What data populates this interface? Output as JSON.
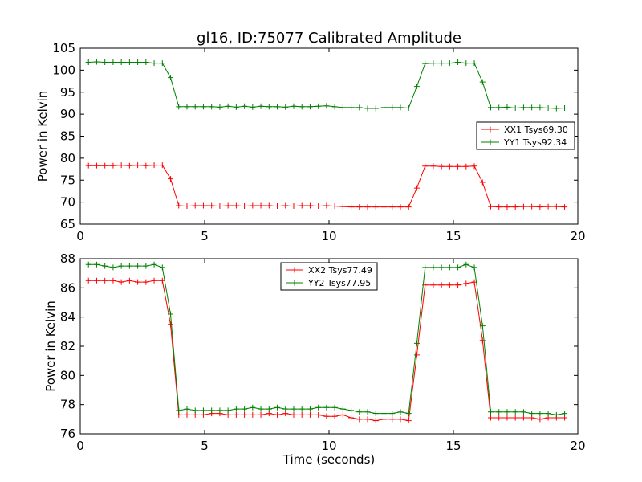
{
  "figure": {
    "title": "gl16, ID:75077 Calibrated Amplitude"
  },
  "chart_data": [
    {
      "type": "line",
      "xlabel": "",
      "ylabel": "Power in Kelvin",
      "xlim": [
        0,
        20
      ],
      "ylim": [
        65,
        105
      ],
      "xticks": [
        0,
        5,
        10,
        15,
        20
      ],
      "yticks": [
        65,
        70,
        75,
        80,
        85,
        90,
        95,
        100,
        105
      ],
      "grid": false,
      "legend_position": "center-right",
      "x": [
        0.33,
        0.66,
        0.99,
        1.32,
        1.65,
        1.98,
        2.31,
        2.64,
        2.97,
        3.3,
        3.63,
        3.96,
        4.29,
        4.62,
        4.95,
        5.28,
        5.61,
        5.94,
        6.27,
        6.6,
        6.93,
        7.26,
        7.59,
        7.92,
        8.25,
        8.58,
        8.91,
        9.24,
        9.57,
        9.9,
        10.23,
        10.56,
        10.89,
        11.22,
        11.55,
        11.88,
        12.21,
        12.54,
        12.87,
        13.2,
        13.53,
        13.86,
        14.19,
        14.52,
        14.85,
        15.18,
        15.51,
        15.84,
        16.17,
        16.5,
        16.83,
        17.16,
        17.49,
        17.82,
        18.15,
        18.48,
        18.81,
        19.14,
        19.47
      ],
      "series": [
        {
          "name": "XX1 Tsys69.30",
          "color": "#ff0000",
          "values": [
            78.3,
            78.3,
            78.3,
            78.3,
            78.4,
            78.3,
            78.4,
            78.3,
            78.4,
            78.4,
            75.3,
            69.2,
            69.1,
            69.2,
            69.2,
            69.2,
            69.1,
            69.2,
            69.2,
            69.1,
            69.2,
            69.2,
            69.2,
            69.1,
            69.2,
            69.1,
            69.2,
            69.2,
            69.1,
            69.2,
            69.1,
            69.0,
            68.9,
            68.9,
            68.9,
            68.9,
            68.9,
            68.9,
            68.9,
            68.9,
            73.2,
            78.2,
            78.2,
            78.1,
            78.1,
            78.1,
            78.1,
            78.2,
            74.5,
            69.0,
            68.9,
            68.9,
            68.9,
            69.0,
            69.0,
            68.9,
            69.0,
            69.0,
            68.9
          ]
        },
        {
          "name": "YY1 Tsys92.34",
          "color": "#008000",
          "values": [
            101.8,
            101.9,
            101.8,
            101.8,
            101.8,
            101.8,
            101.8,
            101.8,
            101.6,
            101.6,
            98.3,
            91.7,
            91.7,
            91.7,
            91.7,
            91.7,
            91.6,
            91.8,
            91.6,
            91.8,
            91.6,
            91.8,
            91.7,
            91.7,
            91.6,
            91.8,
            91.7,
            91.7,
            91.8,
            91.9,
            91.7,
            91.5,
            91.5,
            91.5,
            91.3,
            91.3,
            91.5,
            91.5,
            91.5,
            91.4,
            96.3,
            101.5,
            101.6,
            101.6,
            101.6,
            101.8,
            101.6,
            101.6,
            97.3,
            91.5,
            91.5,
            91.6,
            91.4,
            91.5,
            91.5,
            91.5,
            91.4,
            91.3,
            91.4
          ]
        }
      ]
    },
    {
      "type": "line",
      "xlabel": "Time (seconds)",
      "ylabel": "Power in Kelvin",
      "xlim": [
        0,
        20
      ],
      "ylim": [
        76,
        88
      ],
      "xticks": [
        0,
        5,
        10,
        15,
        20
      ],
      "yticks": [
        76,
        78,
        80,
        82,
        84,
        86,
        88
      ],
      "grid": false,
      "legend_position": "top-center",
      "x": [
        0.33,
        0.66,
        0.99,
        1.32,
        1.65,
        1.98,
        2.31,
        2.64,
        2.97,
        3.3,
        3.63,
        3.96,
        4.29,
        4.62,
        4.95,
        5.28,
        5.61,
        5.94,
        6.27,
        6.6,
        6.93,
        7.26,
        7.59,
        7.92,
        8.25,
        8.58,
        8.91,
        9.24,
        9.57,
        9.9,
        10.23,
        10.56,
        10.89,
        11.22,
        11.55,
        11.88,
        12.21,
        12.54,
        12.87,
        13.2,
        13.53,
        13.86,
        14.19,
        14.52,
        14.85,
        15.18,
        15.51,
        15.84,
        16.17,
        16.5,
        16.83,
        17.16,
        17.49,
        17.82,
        18.15,
        18.48,
        18.81,
        19.14,
        19.47
      ],
      "series": [
        {
          "name": "XX2 Tsys77.49",
          "color": "#ff0000",
          "values": [
            86.5,
            86.5,
            86.5,
            86.5,
            86.4,
            86.5,
            86.4,
            86.4,
            86.5,
            86.5,
            83.5,
            77.3,
            77.3,
            77.3,
            77.3,
            77.4,
            77.4,
            77.3,
            77.3,
            77.3,
            77.3,
            77.3,
            77.4,
            77.3,
            77.4,
            77.3,
            77.3,
            77.3,
            77.3,
            77.2,
            77.2,
            77.3,
            77.1,
            77.0,
            77.0,
            76.9,
            77.0,
            77.0,
            77.0,
            76.9,
            81.4,
            86.2,
            86.2,
            86.2,
            86.2,
            86.2,
            86.3,
            86.4,
            82.4,
            77.1,
            77.1,
            77.1,
            77.1,
            77.1,
            77.1,
            77.0,
            77.1,
            77.1,
            77.1
          ]
        },
        {
          "name": "YY2 Tsys77.95",
          "color": "#008000",
          "values": [
            87.6,
            87.6,
            87.5,
            87.4,
            87.5,
            87.5,
            87.5,
            87.5,
            87.6,
            87.4,
            84.2,
            77.6,
            77.7,
            77.6,
            77.6,
            77.6,
            77.6,
            77.6,
            77.7,
            77.7,
            77.8,
            77.7,
            77.7,
            77.8,
            77.7,
            77.7,
            77.7,
            77.7,
            77.8,
            77.8,
            77.8,
            77.7,
            77.6,
            77.5,
            77.5,
            77.4,
            77.4,
            77.4,
            77.5,
            77.4,
            82.2,
            87.4,
            87.4,
            87.4,
            87.4,
            87.4,
            87.6,
            87.4,
            83.4,
            77.5,
            77.5,
            77.5,
            77.5,
            77.5,
            77.4,
            77.4,
            77.4,
            77.3,
            77.4
          ]
        }
      ]
    }
  ]
}
